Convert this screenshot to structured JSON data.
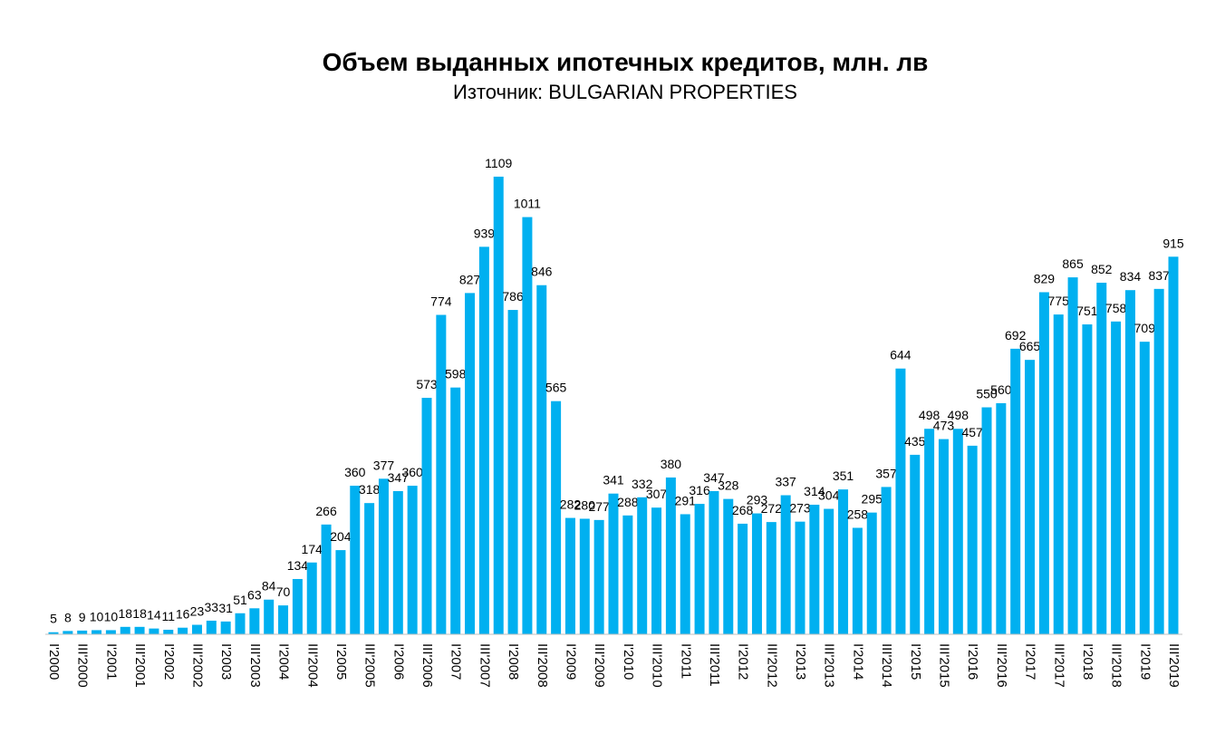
{
  "chart_data": {
    "type": "bar",
    "title": "Объем выданных ипотечных кредитов, млн. лв",
    "subtitle": "Източник: BULGARIAN PROPERTIES",
    "categories": [
      "I'2000",
      null,
      "III'2000",
      null,
      "I'2001",
      null,
      "III'2001",
      null,
      "I'2002",
      null,
      "III'2002",
      null,
      "I'2003",
      null,
      "III'2003",
      null,
      "I'2004",
      null,
      "III'2004",
      null,
      "I'2005",
      null,
      "III'2005",
      null,
      "I'2006",
      null,
      "III'2006",
      null,
      "I'2007",
      null,
      "III'2007",
      null,
      "I'2008",
      null,
      "III'2008",
      null,
      "I'2009",
      null,
      "III'2009",
      null,
      "I'2010",
      null,
      "III'2010",
      null,
      "I'2011",
      null,
      "III'2011",
      null,
      "I'2012",
      null,
      "III'2012",
      null,
      "I'2013",
      null,
      "III'2013",
      null,
      "I'2014",
      null,
      "III'2014",
      null,
      "I'2015",
      null,
      "III'2015",
      null,
      "I'2016",
      null,
      "III'2016",
      null,
      "I'2017",
      null,
      "III'2017",
      null,
      "I'2018",
      null,
      "III'2018",
      null,
      "I'2019",
      null,
      "III'2019"
    ],
    "values": [
      5,
      8,
      9,
      10,
      10,
      18,
      18,
      14,
      11,
      16,
      23,
      33,
      31,
      51,
      63,
      84,
      70,
      134,
      174,
      266,
      204,
      360,
      318,
      377,
      347,
      360,
      573,
      774,
      598,
      827,
      939,
      1109,
      786,
      1011,
      846,
      565,
      282,
      280,
      277,
      341,
      288,
      332,
      307,
      380,
      291,
      316,
      347,
      328,
      268,
      293,
      272,
      337,
      273,
      314,
      304,
      351,
      258,
      295,
      357,
      644,
      435,
      498,
      473,
      498,
      457,
      550,
      560,
      692,
      665,
      829,
      775,
      865,
      751,
      852,
      758,
      834,
      709,
      837,
      915
    ],
    "color": "#00b0f0",
    "ylim": [
      0,
      1200
    ]
  }
}
